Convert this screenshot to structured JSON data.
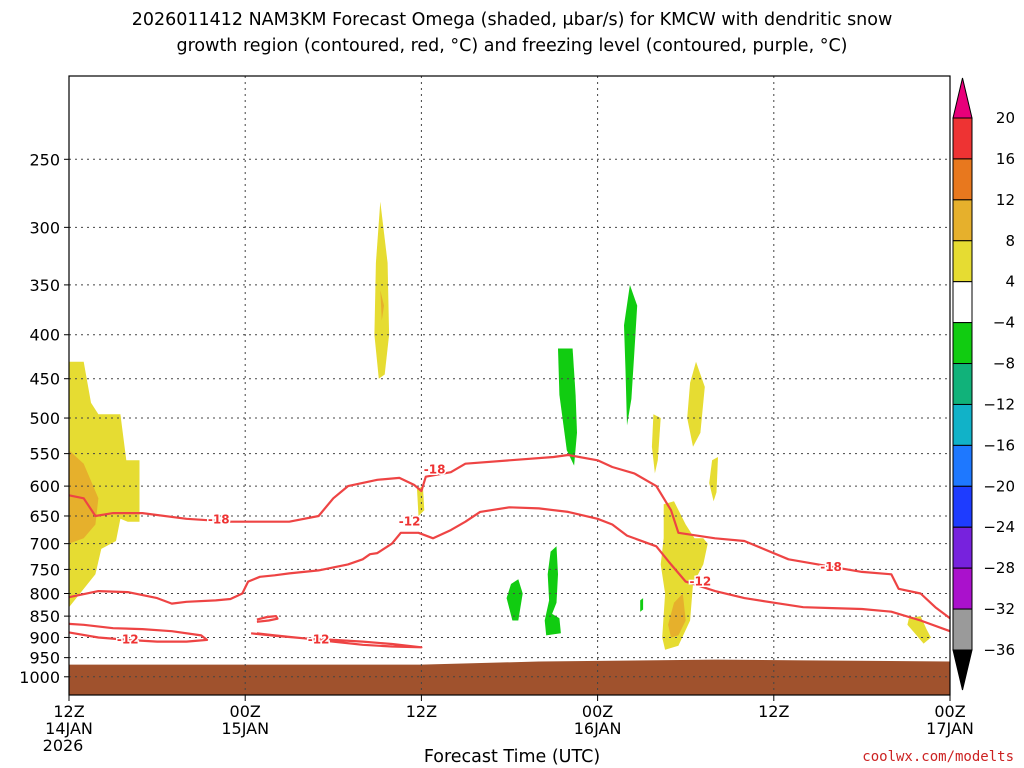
{
  "chart_data": {
    "type": "heatmap",
    "title_line1": "2026011412 NAM3KM Forecast Omega (shaded, μbar/s) for KMCW with dendritic snow",
    "title_line2": "growth region (contoured, red, °C) and freezing level (contoured, purple, °C)",
    "xlabel": "Forecast Time (UTC)",
    "credit": "coolwx.com/modelts",
    "ylim": [
      1050,
      200
    ],
    "y_scale": "log-pressure",
    "xlim": [
      0,
      60
    ],
    "grid": true,
    "y_ticks": [
      250,
      300,
      350,
      400,
      450,
      500,
      550,
      600,
      650,
      700,
      750,
      800,
      850,
      900,
      950,
      1000
    ],
    "x_ticks": [
      {
        "hour": 0,
        "lines": [
          "12Z",
          "14JAN",
          "2026"
        ]
      },
      {
        "hour": 12,
        "lines": [
          "00Z",
          "15JAN"
        ]
      },
      {
        "hour": 24,
        "lines": [
          "12Z"
        ]
      },
      {
        "hour": 36,
        "lines": [
          "00Z",
          "16JAN"
        ]
      },
      {
        "hour": 48,
        "lines": [
          "12Z"
        ]
      },
      {
        "hour": 60,
        "lines": [
          "00Z",
          "17JAN"
        ]
      }
    ],
    "colorbar": {
      "levels": [
        "20",
        "16",
        "12",
        "8",
        "4",
        "−4",
        "−8",
        "−12",
        "−16",
        "−20",
        "−24",
        "−28",
        "−32",
        "−36"
      ],
      "colors": [
        "#e8007a",
        "#ee3333",
        "#e8781e",
        "#e6b02c",
        "#e6dc32",
        "#ffffff",
        "#11cc11",
        "#11b27a",
        "#11b2c8",
        "#1e78ff",
        "#1e3cff",
        "#7722dd",
        "#aa11cc",
        "#9a9a9a",
        "#000000"
      ]
    },
    "omega_regions": [
      {
        "level": "4",
        "color": "#e6dc32",
        "points": [
          [
            0,
            430
          ],
          [
            1,
            430
          ],
          [
            1.5,
            480
          ],
          [
            2,
            495
          ],
          [
            3.5,
            495
          ],
          [
            3.9,
            560
          ],
          [
            4.8,
            560
          ],
          [
            4.8,
            660
          ],
          [
            4,
            660
          ],
          [
            3.5,
            655
          ],
          [
            3.2,
            695
          ],
          [
            2.2,
            710
          ],
          [
            1.8,
            760
          ],
          [
            0,
            830
          ]
        ]
      },
      {
        "level": "8",
        "color": "#e6b02c",
        "points": [
          [
            0,
            545
          ],
          [
            1,
            565
          ],
          [
            2,
            620
          ],
          [
            1.8,
            665
          ],
          [
            1,
            690
          ],
          [
            0,
            700
          ]
        ]
      },
      {
        "level": "4",
        "color": "#e6dc32",
        "points": [
          [
            21.2,
            280
          ],
          [
            21.7,
            330
          ],
          [
            21.8,
            400
          ],
          [
            21.5,
            445
          ],
          [
            21.1,
            450
          ],
          [
            20.8,
            400
          ],
          [
            20.9,
            330
          ]
        ]
      },
      {
        "level": "8",
        "color": "#e6b02c",
        "points": [
          [
            21.2,
            355
          ],
          [
            21.45,
            370
          ],
          [
            21.3,
            385
          ]
        ]
      },
      {
        "level": "4",
        "color": "#e6dc32",
        "points": [
          [
            23.7,
            605
          ],
          [
            24.1,
            600
          ],
          [
            24.2,
            640
          ],
          [
            23.8,
            650
          ]
        ]
      },
      {
        "level": "-4",
        "color": "#11cc11",
        "points": [
          [
            33.3,
            415
          ],
          [
            34.3,
            415
          ],
          [
            34.5,
            470
          ],
          [
            34.6,
            520
          ],
          [
            34.4,
            568
          ],
          [
            33.9,
            545
          ],
          [
            33.4,
            470
          ]
        ]
      },
      {
        "level": "-4",
        "color": "#11cc11",
        "points": [
          [
            30.1,
            780
          ],
          [
            30.6,
            770
          ],
          [
            30.9,
            800
          ],
          [
            30.6,
            860
          ],
          [
            30.2,
            860
          ],
          [
            29.8,
            810
          ]
        ]
      },
      {
        "level": "-4",
        "color": "#11cc11",
        "points": [
          [
            32.8,
            715
          ],
          [
            33.2,
            705
          ],
          [
            33.3,
            760
          ],
          [
            33.2,
            820
          ],
          [
            32.9,
            845
          ],
          [
            33.4,
            855
          ],
          [
            33.5,
            890
          ],
          [
            32.5,
            895
          ],
          [
            32.4,
            860
          ],
          [
            32.7,
            815
          ],
          [
            32.6,
            760
          ]
        ]
      },
      {
        "level": "-4",
        "color": "#11cc11",
        "points": [
          [
            38.2,
            350
          ],
          [
            38.7,
            370
          ],
          [
            38.5,
            420
          ],
          [
            38.3,
            475
          ],
          [
            38,
            510
          ],
          [
            37.9,
            440
          ],
          [
            37.8,
            390
          ]
        ]
      },
      {
        "level": "4",
        "color": "#e6dc32",
        "points": [
          [
            39.8,
            495
          ],
          [
            40.3,
            500
          ],
          [
            40.1,
            560
          ],
          [
            39.9,
            580
          ],
          [
            39.7,
            540
          ]
        ]
      },
      {
        "level": "4",
        "color": "#e6dc32",
        "points": [
          [
            42.3,
            455
          ],
          [
            42.7,
            430
          ],
          [
            43.3,
            460
          ],
          [
            43,
            520
          ],
          [
            42.5,
            540
          ],
          [
            42.1,
            500
          ]
        ]
      },
      {
        "level": "4",
        "color": "#e6dc32",
        "points": [
          [
            43.8,
            560
          ],
          [
            44.2,
            555
          ],
          [
            44.1,
            610
          ],
          [
            43.9,
            625
          ],
          [
            43.6,
            595
          ]
        ]
      },
      {
        "level": "4",
        "color": "#e6dc32",
        "points": [
          [
            40.5,
            630
          ],
          [
            41.2,
            625
          ],
          [
            42,
            665
          ],
          [
            42.6,
            690
          ],
          [
            43.2,
            690
          ],
          [
            43.5,
            700
          ],
          [
            43.2,
            740
          ],
          [
            42.5,
            780
          ],
          [
            42.3,
            860
          ],
          [
            41.5,
            920
          ],
          [
            40.6,
            930
          ],
          [
            40.4,
            900
          ],
          [
            40.6,
            800
          ],
          [
            40.3,
            740
          ],
          [
            40.5,
            690
          ]
        ]
      },
      {
        "level": "8",
        "color": "#e6b02c",
        "points": [
          [
            41.2,
            820
          ],
          [
            41.8,
            800
          ],
          [
            42,
            860
          ],
          [
            41.5,
            895
          ],
          [
            41,
            900
          ],
          [
            40.8,
            870
          ]
        ]
      },
      {
        "level": "-4",
        "color": "#11cc11",
        "points": [
          [
            38.9,
            815
          ],
          [
            39.1,
            810
          ],
          [
            39.1,
            835
          ],
          [
            38.9,
            840
          ]
        ]
      },
      {
        "level": "4",
        "color": "#e6dc32",
        "points": [
          [
            57.2,
            855
          ],
          [
            58,
            850
          ],
          [
            58.4,
            880
          ],
          [
            58.7,
            900
          ],
          [
            58.2,
            915
          ],
          [
            57.6,
            890
          ],
          [
            57.1,
            870
          ]
        ]
      }
    ],
    "terrain": {
      "color": "#a0522d",
      "points": [
        [
          0,
          968
        ],
        [
          24,
          968
        ],
        [
          32,
          960
        ],
        [
          44,
          955
        ],
        [
          50,
          957
        ],
        [
          60,
          960
        ],
        [
          60,
          1050
        ],
        [
          0,
          1050
        ]
      ]
    },
    "contours": [
      {
        "label": "-18",
        "color": "#ee4444",
        "points": [
          [
            0,
            615
          ],
          [
            1,
            620
          ],
          [
            1.8,
            650
          ],
          [
            3,
            645
          ],
          [
            5,
            645
          ],
          [
            8,
            655
          ],
          [
            11,
            660
          ],
          [
            15,
            660
          ],
          [
            17,
            650
          ],
          [
            18,
            620
          ],
          [
            19,
            600
          ],
          [
            21,
            590
          ],
          [
            22.5,
            587
          ],
          [
            23.5,
            598
          ],
          [
            24,
            608
          ],
          [
            24.3,
            585
          ],
          [
            26,
            578
          ],
          [
            27,
            565
          ],
          [
            30,
            560
          ],
          [
            33,
            555
          ],
          [
            34,
            552
          ],
          [
            36,
            560
          ],
          [
            37,
            570
          ],
          [
            38.5,
            580
          ],
          [
            40,
            600
          ],
          [
            41,
            640
          ],
          [
            41.5,
            680
          ],
          [
            44,
            690
          ],
          [
            46,
            695
          ],
          [
            49,
            730
          ],
          [
            52,
            745
          ],
          [
            54,
            755
          ],
          [
            56,
            760
          ],
          [
            56.5,
            790
          ],
          [
            58,
            800
          ],
          [
            59,
            830
          ],
          [
            60,
            855
          ]
        ],
        "label_pos": [
          [
            10.2,
            656
          ],
          [
            24.9,
            574
          ],
          [
            51.9,
            745
          ]
        ]
      },
      {
        "label": "-12",
        "color": "#ee4444",
        "points": [
          [
            0,
            808
          ],
          [
            2,
            795
          ],
          [
            4,
            797
          ],
          [
            6,
            810
          ],
          [
            7,
            822
          ],
          [
            8,
            818
          ],
          [
            10,
            815
          ],
          [
            11,
            812
          ],
          [
            11.8,
            800
          ],
          [
            12.2,
            775
          ],
          [
            13,
            765
          ],
          [
            14,
            762
          ],
          [
            15,
            758
          ],
          [
            17,
            752
          ],
          [
            19,
            740
          ],
          [
            20,
            730
          ],
          [
            20.5,
            720
          ],
          [
            21,
            718
          ],
          [
            22,
            700
          ],
          [
            22.6,
            680
          ],
          [
            23.8,
            680
          ],
          [
            24.8,
            690
          ],
          [
            26,
            675
          ],
          [
            27,
            660
          ],
          [
            28,
            643
          ],
          [
            30,
            635
          ],
          [
            32,
            637
          ],
          [
            34,
            643
          ],
          [
            36,
            655
          ],
          [
            37,
            665
          ],
          [
            38,
            685
          ],
          [
            40,
            705
          ],
          [
            41,
            740
          ],
          [
            42,
            775
          ],
          [
            44,
            795
          ],
          [
            46,
            810
          ],
          [
            48,
            820
          ],
          [
            50,
            830
          ],
          [
            52,
            832
          ],
          [
            54,
            834
          ],
          [
            56,
            840
          ],
          [
            58,
            860
          ],
          [
            60,
            885
          ]
        ],
        "label_pos": [
          [
            23.2,
            660
          ],
          [
            43,
            775
          ]
        ]
      },
      {
        "label": "-12",
        "color": "#ee4444",
        "points": [
          [
            0,
            888
          ],
          [
            2,
            900
          ],
          [
            4,
            906
          ],
          [
            6,
            910
          ],
          [
            8,
            910
          ],
          [
            9.4,
            906
          ],
          [
            9,
            895
          ],
          [
            7,
            885
          ],
          [
            5,
            880
          ],
          [
            3,
            878
          ],
          [
            1,
            870
          ],
          [
            0,
            868
          ]
        ],
        "label_pos": [
          [
            4,
            905
          ]
        ]
      },
      {
        "label": "-12",
        "color": "#ee4444",
        "points": [
          [
            12.4,
            890
          ],
          [
            14,
            896
          ],
          [
            16,
            902
          ],
          [
            18,
            910
          ],
          [
            20,
            918
          ],
          [
            22,
            922
          ],
          [
            24,
            924
          ],
          [
            22,
            916
          ],
          [
            20,
            910
          ],
          [
            18,
            906
          ],
          [
            16,
            902
          ],
          [
            14,
            895
          ],
          [
            12.8,
            890
          ]
        ],
        "label_pos": [
          [
            17,
            905
          ]
        ]
      },
      {
        "label": "",
        "color": "#ee4444",
        "points": [
          [
            12.8,
            858
          ],
          [
            13.5,
            852
          ],
          [
            14.1,
            850
          ],
          [
            14.2,
            856
          ],
          [
            13.6,
            860
          ],
          [
            12.8,
            863
          ]
        ],
        "label_pos": []
      }
    ]
  }
}
